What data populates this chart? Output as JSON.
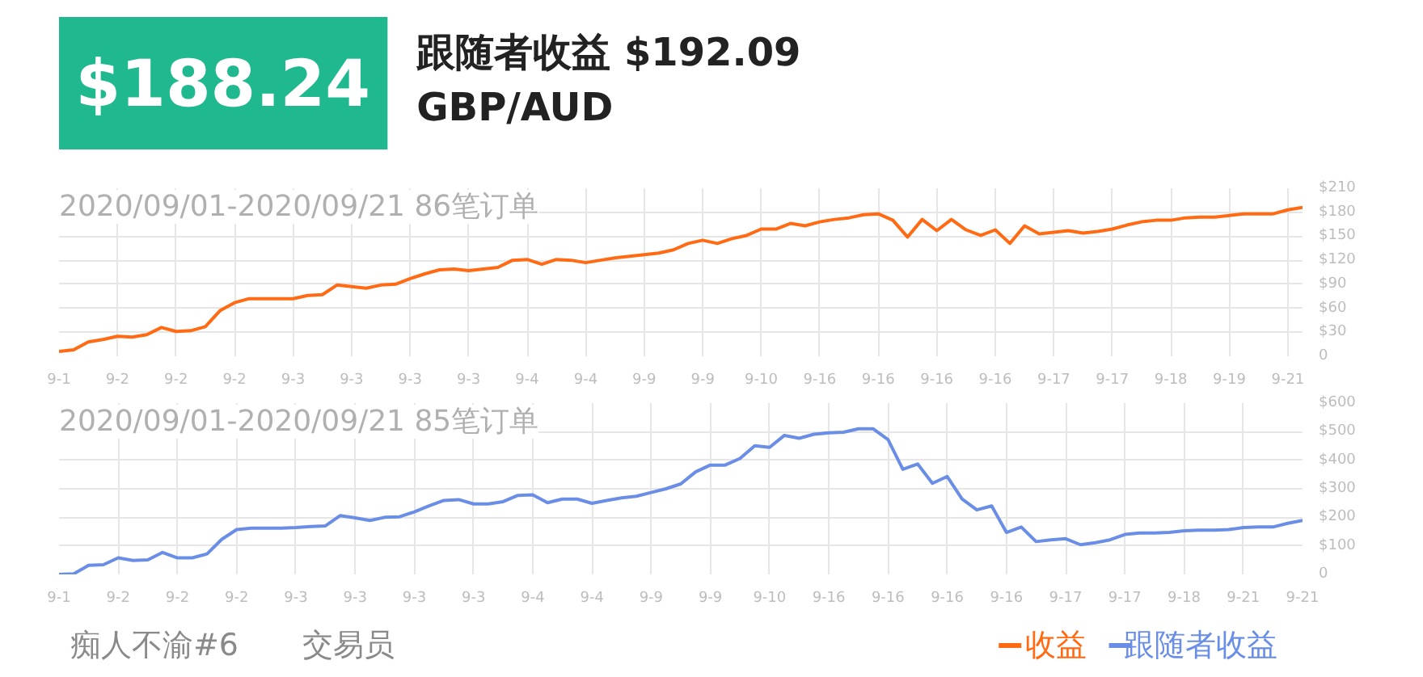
{
  "chart_data": [
    {
      "type": "other",
      "annotations": [
        "$188.24",
        "跟随者收益 $192.09",
        "GBP/AUD",
        "痴人不渝#6",
        "交易员"
      ]
    },
    {
      "type": "line",
      "title": "2020/09/01-2020/09/21 86笔订单",
      "legend": "bottom right",
      "grid": true,
      "categories": [
        "9-1",
        null,
        null,
        null,
        "9-2",
        null,
        null,
        null,
        "9-2",
        null,
        null,
        null,
        "9-2",
        null,
        null,
        null,
        "9-3",
        null,
        null,
        null,
        "9-3",
        null,
        null,
        null,
        "9-3",
        null,
        null,
        null,
        "9-3",
        null,
        null,
        null,
        "9-4",
        null,
        null,
        null,
        "9-4",
        null,
        null,
        null,
        "9-9",
        null,
        null,
        null,
        "9-9",
        null,
        null,
        null,
        "9-10",
        null,
        null,
        null,
        "9-16",
        null,
        null,
        null,
        "9-16",
        null,
        null,
        null,
        "9-16",
        null,
        null,
        null,
        "9-16",
        null,
        null,
        null,
        "9-17",
        null,
        null,
        null,
        "9-17",
        null,
        null,
        null,
        "9-18",
        null,
        null,
        null,
        "9-19",
        null,
        null,
        null,
        "9-21",
        null
      ],
      "ylim": [
        0,
        210
      ],
      "yticks": [
        0,
        {
          "value": 30,
          "label": "$30"
        },
        {
          "value": 60,
          "label": "$60"
        },
        {
          "value": 90,
          "label": "$90"
        },
        {
          "value": 120,
          "label": "$120"
        },
        {
          "value": 150,
          "label": "$150"
        },
        {
          "value": 180,
          "label": "$180"
        },
        {
          "value": 210,
          "label": "$210"
        }
      ],
      "series": [
        {
          "name": "收益",
          "color": "#ff6a13",
          "values": [
            6,
            8,
            18,
            21,
            25,
            24,
            27,
            36,
            31,
            32,
            37,
            57,
            67,
            72,
            72,
            72,
            72,
            76,
            77,
            89,
            87,
            85,
            89,
            90,
            97,
            103,
            108,
            109,
            107,
            109,
            111,
            120,
            121,
            115,
            121,
            120,
            117,
            120,
            123,
            125,
            127,
            129,
            133,
            141,
            145,
            141,
            147,
            151,
            159,
            159,
            166,
            163,
            168,
            171,
            173,
            177,
            178,
            170,
            149,
            171,
            157,
            171,
            158,
            151,
            158,
            141,
            163,
            153,
            155,
            157,
            154,
            156,
            159,
            164,
            168,
            170,
            170,
            173,
            174,
            174,
            176,
            178,
            178,
            178,
            183,
            186
          ]
        }
      ]
    },
    {
      "type": "line",
      "title": "2020/09/01-2020/09/21 85笔订单",
      "legend": "bottom right",
      "grid": true,
      "categories": [
        "9-1",
        null,
        null,
        null,
        "9-2",
        null,
        null,
        null,
        "9-2",
        null,
        null,
        null,
        "9-2",
        null,
        null,
        null,
        "9-3",
        null,
        null,
        null,
        "9-3",
        null,
        null,
        null,
        "9-3",
        null,
        null,
        null,
        "9-3",
        null,
        null,
        null,
        "9-4",
        null,
        null,
        null,
        "9-4",
        null,
        null,
        null,
        "9-9",
        null,
        null,
        null,
        "9-9",
        null,
        null,
        null,
        "9-10",
        null,
        null,
        null,
        "9-16",
        null,
        null,
        null,
        "9-16",
        null,
        null,
        null,
        "9-16",
        null,
        null,
        null,
        "9-16",
        null,
        null,
        null,
        "9-17",
        null,
        null,
        null,
        "9-17",
        null,
        null,
        null,
        "9-18",
        null,
        null,
        null,
        "9-21",
        null,
        null,
        null,
        "9-21"
      ],
      "ylim": [
        0,
        600
      ],
      "yticks": [
        0,
        {
          "value": 100,
          "label": "$100"
        },
        {
          "value": 200,
          "label": "$200"
        },
        {
          "value": 300,
          "label": "$300"
        },
        {
          "value": 400,
          "label": "$400"
        },
        {
          "value": 500,
          "label": "$500"
        },
        {
          "value": 600,
          "label": "$600"
        }
      ],
      "series": [
        {
          "name": "跟随者收益",
          "color": "#6a8ee6",
          "values": [
            0,
            2,
            32,
            34,
            58,
            49,
            51,
            77,
            58,
            58,
            72,
            123,
            157,
            162,
            162,
            162,
            164,
            168,
            170,
            206,
            198,
            189,
            200,
            202,
            219,
            240,
            259,
            262,
            247,
            247,
            255,
            277,
            279,
            251,
            264,
            264,
            249,
            259,
            268,
            274,
            287,
            300,
            317,
            359,
            383,
            383,
            406,
            451,
            445,
            487,
            477,
            491,
            496,
            498,
            510,
            510,
            472,
            368,
            387,
            319,
            343,
            264,
            226,
            240,
            147,
            166,
            115,
            121,
            125,
            104,
            111,
            121,
            140,
            145,
            145,
            147,
            153,
            155,
            155,
            157,
            164,
            166,
            166,
            179,
            189
          ]
        }
      ]
    }
  ]
}
